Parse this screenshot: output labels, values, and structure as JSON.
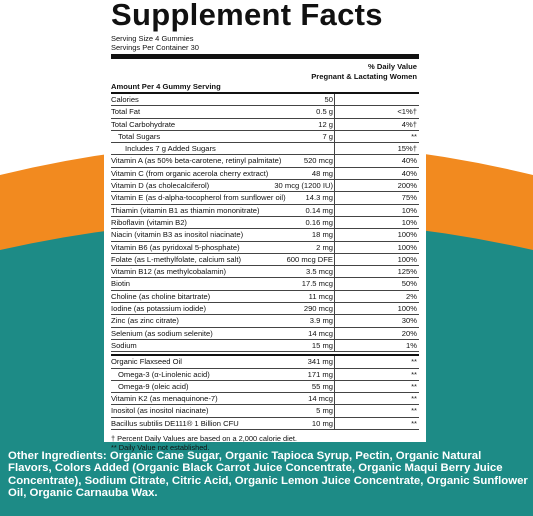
{
  "title": "Supplement Facts",
  "serving_size": "Serving Size 4 Gummies",
  "servings_per_container": "Servings Per Container 30",
  "header": {
    "daily_value": "% Daily Value",
    "group": "Pregnant & Lactating Women",
    "amount": "Amount Per 4 Gummy Serving"
  },
  "nutrients": [
    {
      "name": "Calories",
      "amount": "50"
    },
    {
      "name": "Total Fat",
      "amount": "0.5 g",
      "dv": "<1%†"
    },
    {
      "name": "Total Carbohydrate",
      "amount": "12 g",
      "dv": "4%†"
    },
    {
      "name": "Total Sugars",
      "amount": "7 g",
      "dv": "**",
      "indent": 1
    },
    {
      "name": "Includes 7 g Added Sugars",
      "dv": "15%†",
      "indent": 2
    },
    {
      "name": "Vitamin A (as 50% beta-carotene, retinyl palmitate)",
      "amount": "520 mcg",
      "dv": "40%"
    },
    {
      "name": "Vitamin C (from organic acerola cherry extract)",
      "amount": "48 mg",
      "dv": "40%"
    },
    {
      "name": "Vitamin D (as cholecalciferol)",
      "amount": "30 mcg (1200 IU)",
      "dv": "200%"
    },
    {
      "name": "Vitamin E (as d-alpha-tocopherol from sunflower oil)",
      "amount": "14.3 mg",
      "dv": "75%"
    },
    {
      "name": "Thiamin (vitamin B1 as thiamin mononitrate)",
      "amount": "0.14 mg",
      "dv": "10%"
    },
    {
      "name": "Riboflavin (vitamin B2)",
      "amount": "0.16 mg",
      "dv": "10%"
    },
    {
      "name": "Niacin (vitamin B3 as inositol niacinate)",
      "amount": "18 mg",
      "dv": "100%"
    },
    {
      "name": "Vitamin B6 (as pyridoxal 5-phosphate)",
      "amount": "2 mg",
      "dv": "100%"
    },
    {
      "name": "Folate (as L-methylfolate, calcium salt)",
      "amount": "600 mcg DFE",
      "dv": "100%"
    },
    {
      "name": "Vitamin B12 (as methylcobalamin)",
      "amount": "3.5 mcg",
      "dv": "125%"
    },
    {
      "name": "Biotin",
      "amount": "17.5 mcg",
      "dv": "50%"
    },
    {
      "name": "Choline (as choline bitartrate)",
      "amount": "11 mcg",
      "dv": "2%"
    },
    {
      "name": "Iodine (as potassium iodide)",
      "amount": "290 mcg",
      "dv": "100%"
    },
    {
      "name": "Zinc (as zinc citrate)",
      "amount": "3.9 mg",
      "dv": "30%"
    },
    {
      "name": "Selenium (as sodium selenite)",
      "amount": "14 mcg",
      "dv": "20%"
    },
    {
      "name": "Sodium",
      "amount": "15 mg",
      "dv": "1%"
    }
  ],
  "others": [
    {
      "name": "Organic Flaxseed Oil",
      "amount": "341 mg",
      "dv": "**"
    },
    {
      "name": "Omega-3 (α-Linolenic acid)",
      "amount": "171 mg",
      "dv": "**",
      "indent": 1
    },
    {
      "name": "Omega-9 (oleic acid)",
      "amount": "55 mg",
      "dv": "**",
      "indent": 1
    },
    {
      "name": "Vitamin K2 (as menaquinone-7)",
      "amount": "14 mcg",
      "dv": "**"
    },
    {
      "name": "Inositol (as inositol niacinate)",
      "amount": "5 mg",
      "dv": "**"
    },
    {
      "name": "Bacillus subtilis DE111® 1 Billion CFU",
      "amount": "10 mg",
      "dv": "**"
    }
  ],
  "footnotes": [
    "† Percent Daily Values are based on a 2,000 calorie diet.",
    "** Daily Value not established."
  ],
  "other_ingredients": {
    "label": "Other Ingredients:",
    "text": "Organic Cane Sugar, Organic Tapioca Syrup, Pectin, Organic Natural Flavors, Colors Added (Organic Black Carrot Juice Concentrate, Organic Maqui Berry Juice Concentrate), Sodium Citrate, Citric Acid, Organic Lemon Juice Concentrate, Organic Sunflower Oil, Organic Carnauba Wax."
  }
}
